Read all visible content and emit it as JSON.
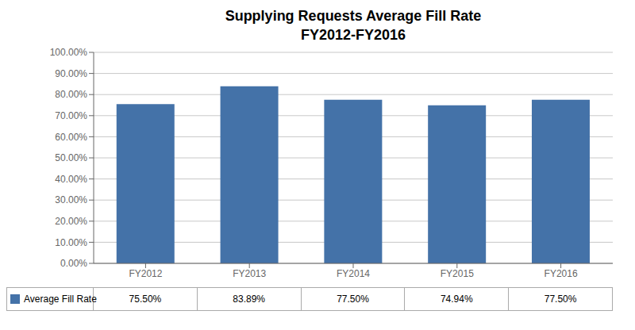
{
  "chart_data": {
    "type": "bar",
    "title": "Supplying Requests Average Fill Rate",
    "subtitle": "FY2012-FY2016",
    "categories": [
      "FY2012",
      "FY2013",
      "FY2014",
      "FY2015",
      "FY2016"
    ],
    "series": [
      {
        "name": "Average Fill Rate",
        "color": "#4472a8",
        "values": [
          0.755,
          0.8389,
          0.775,
          0.7494,
          0.775
        ],
        "value_labels": [
          "75.50%",
          "83.89%",
          "77.50%",
          "74.94%",
          "77.50%"
        ]
      }
    ],
    "ylim": [
      0,
      1.0
    ],
    "yticks": [
      {
        "value": 0.0,
        "label": "0.00%"
      },
      {
        "value": 0.1,
        "label": "10.00%"
      },
      {
        "value": 0.2,
        "label": "20.00%"
      },
      {
        "value": 0.3,
        "label": "30.00%"
      },
      {
        "value": 0.4,
        "label": "40.00%"
      },
      {
        "value": 0.5,
        "label": "50.00%"
      },
      {
        "value": 0.6,
        "label": "60.00%"
      },
      {
        "value": 0.7,
        "label": "70.00%"
      },
      {
        "value": 0.8,
        "label": "80.00%"
      },
      {
        "value": 0.9,
        "label": "90.00%"
      },
      {
        "value": 1.0,
        "label": "100.00%"
      }
    ],
    "grid": true
  }
}
